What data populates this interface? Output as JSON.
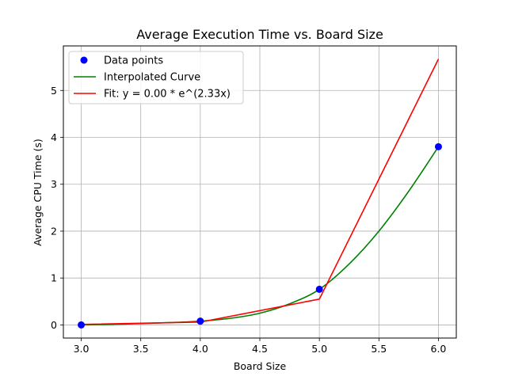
{
  "chart_data": {
    "type": "line",
    "title": "Average Execution Time vs. Board Size",
    "xlabel": "Board Size",
    "ylabel": "Average CPU Time (s)",
    "xlim": [
      2.85,
      6.15
    ],
    "ylim": [
      -0.28,
      5.95
    ],
    "xticks": [
      3.0,
      3.5,
      4.0,
      4.5,
      5.0,
      5.5,
      6.0
    ],
    "xtick_labels": [
      "3.0",
      "3.5",
      "4.0",
      "4.5",
      "5.0",
      "5.5",
      "6.0"
    ],
    "yticks": [
      0,
      1,
      2,
      3,
      4,
      5
    ],
    "ytick_labels": [
      "0",
      "1",
      "2",
      "3",
      "4",
      "5"
    ],
    "grid": true,
    "legend_position": "top-left",
    "series": [
      {
        "name": "Data points",
        "kind": "scatter",
        "color": "#0000ff",
        "x": [
          3,
          4,
          5,
          6
        ],
        "y": [
          0.0,
          0.08,
          0.76,
          3.8
        ]
      },
      {
        "name": "Interpolated Curve",
        "kind": "line",
        "color": "#008000",
        "x": [
          3.0,
          3.25,
          3.5,
          3.75,
          4.0,
          4.25,
          4.5,
          4.75,
          5.0,
          5.25,
          5.5,
          5.75,
          6.0
        ],
        "y": [
          0.0,
          0.01,
          0.03,
          0.05,
          0.08,
          0.14,
          0.25,
          0.45,
          0.76,
          1.3,
          2.0,
          2.85,
          3.8
        ]
      },
      {
        "name": "Fit: y = 0.00 * e^(2.33x)",
        "kind": "line",
        "color": "#ff0000",
        "x": [
          3,
          4,
          5,
          6
        ],
        "y": [
          0.01,
          0.06,
          0.55,
          5.67
        ]
      }
    ]
  }
}
